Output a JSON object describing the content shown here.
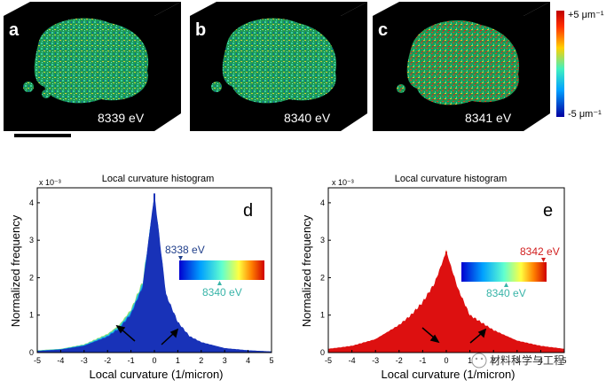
{
  "panels": [
    {
      "letter": "a",
      "energy": "8339 eV"
    },
    {
      "letter": "b",
      "energy": "8340 eV"
    },
    {
      "letter": "c",
      "energy": "8341 eV"
    }
  ],
  "colorbar": {
    "top": "+5",
    "bottom": "-5",
    "unit": "μm⁻¹"
  },
  "watermark": "材料科学与工程",
  "chart_data": [
    {
      "type": "area",
      "panel_letter": "d",
      "title": "Local curvature histogram",
      "xlabel": "Local curvature (1/micron)",
      "ylabel": "Normalized frequency",
      "y_exponent": "x 10⁻³",
      "xlim": [
        -5,
        5
      ],
      "ylim": [
        0,
        4.4
      ],
      "xticks": [
        -5,
        -4,
        -3,
        -2,
        -1,
        0,
        1,
        2,
        3,
        4,
        5
      ],
      "yticks": [
        0,
        1,
        2,
        3,
        4
      ],
      "peak": 4.25,
      "legend": {
        "start": "8338 eV",
        "end": "8340 eV",
        "start_color": "#1f3e8a",
        "end_color": "#38b4a8"
      },
      "palette": [
        "#1832b8",
        "#0a78e0",
        "#20b8e8",
        "#48d8b0",
        "#a0e070"
      ],
      "series": [
        {
          "name": "8338 eV",
          "x": [
            -5,
            -4,
            -3,
            -2,
            -1.5,
            -1,
            -0.5,
            0,
            0.5,
            1,
            1.5,
            2,
            3,
            4,
            5
          ],
          "values": [
            0.04,
            0.08,
            0.18,
            0.42,
            0.64,
            1.02,
            1.75,
            4.25,
            1.55,
            0.82,
            0.44,
            0.28,
            0.12,
            0.06,
            0.03
          ]
        },
        {
          "name": "8340 eV",
          "x": [
            -5,
            -4,
            -3,
            -2,
            -1.5,
            -1,
            -0.5,
            0,
            0.5,
            1,
            1.5,
            2,
            3,
            4,
            5
          ],
          "values": [
            0.06,
            0.1,
            0.22,
            0.5,
            0.74,
            1.15,
            1.9,
            4.0,
            1.4,
            0.72,
            0.4,
            0.24,
            0.1,
            0.05,
            0.02
          ]
        }
      ]
    },
    {
      "type": "area",
      "panel_letter": "e",
      "title": "Local curvature histogram",
      "xlabel": "Local curvature (1/micron)",
      "ylabel": "Normalized frequency",
      "y_exponent": "x 10⁻³",
      "xlim": [
        -5,
        5
      ],
      "ylim": [
        0,
        4.4
      ],
      "xticks": [
        -5,
        -4,
        -3,
        -2,
        -1,
        0,
        1,
        2,
        3,
        4,
        5
      ],
      "yticks": [
        0,
        1,
        2,
        3,
        4
      ],
      "peak": 2.7,
      "legend": {
        "start": "8342 eV",
        "end": "8340 eV",
        "start_color": "#d22020",
        "end_color": "#38b4a8"
      },
      "palette": [
        "#dd1010",
        "#f04010",
        "#f89020",
        "#f0d040",
        "#c0e860"
      ],
      "series": [
        {
          "name": "8340 eV",
          "x": [
            -5,
            -4,
            -3,
            -2,
            -1.5,
            -1,
            -0.5,
            0,
            0.5,
            1,
            2,
            3,
            4,
            5
          ],
          "values": [
            0.1,
            0.18,
            0.36,
            0.74,
            1.0,
            1.35,
            1.85,
            2.7,
            1.7,
            1.0,
            0.6,
            0.32,
            0.18,
            0.1
          ]
        },
        {
          "name": "8342 eV",
          "x": [
            -5,
            -4,
            -3,
            -2,
            -1.5,
            -1,
            -0.5,
            0,
            0.5,
            1,
            2,
            3,
            4,
            5
          ],
          "values": [
            0.06,
            0.12,
            0.24,
            0.45,
            0.62,
            0.82,
            1.1,
            2.7,
            1.05,
            0.62,
            0.38,
            0.22,
            0.12,
            0.07
          ]
        }
      ]
    }
  ]
}
